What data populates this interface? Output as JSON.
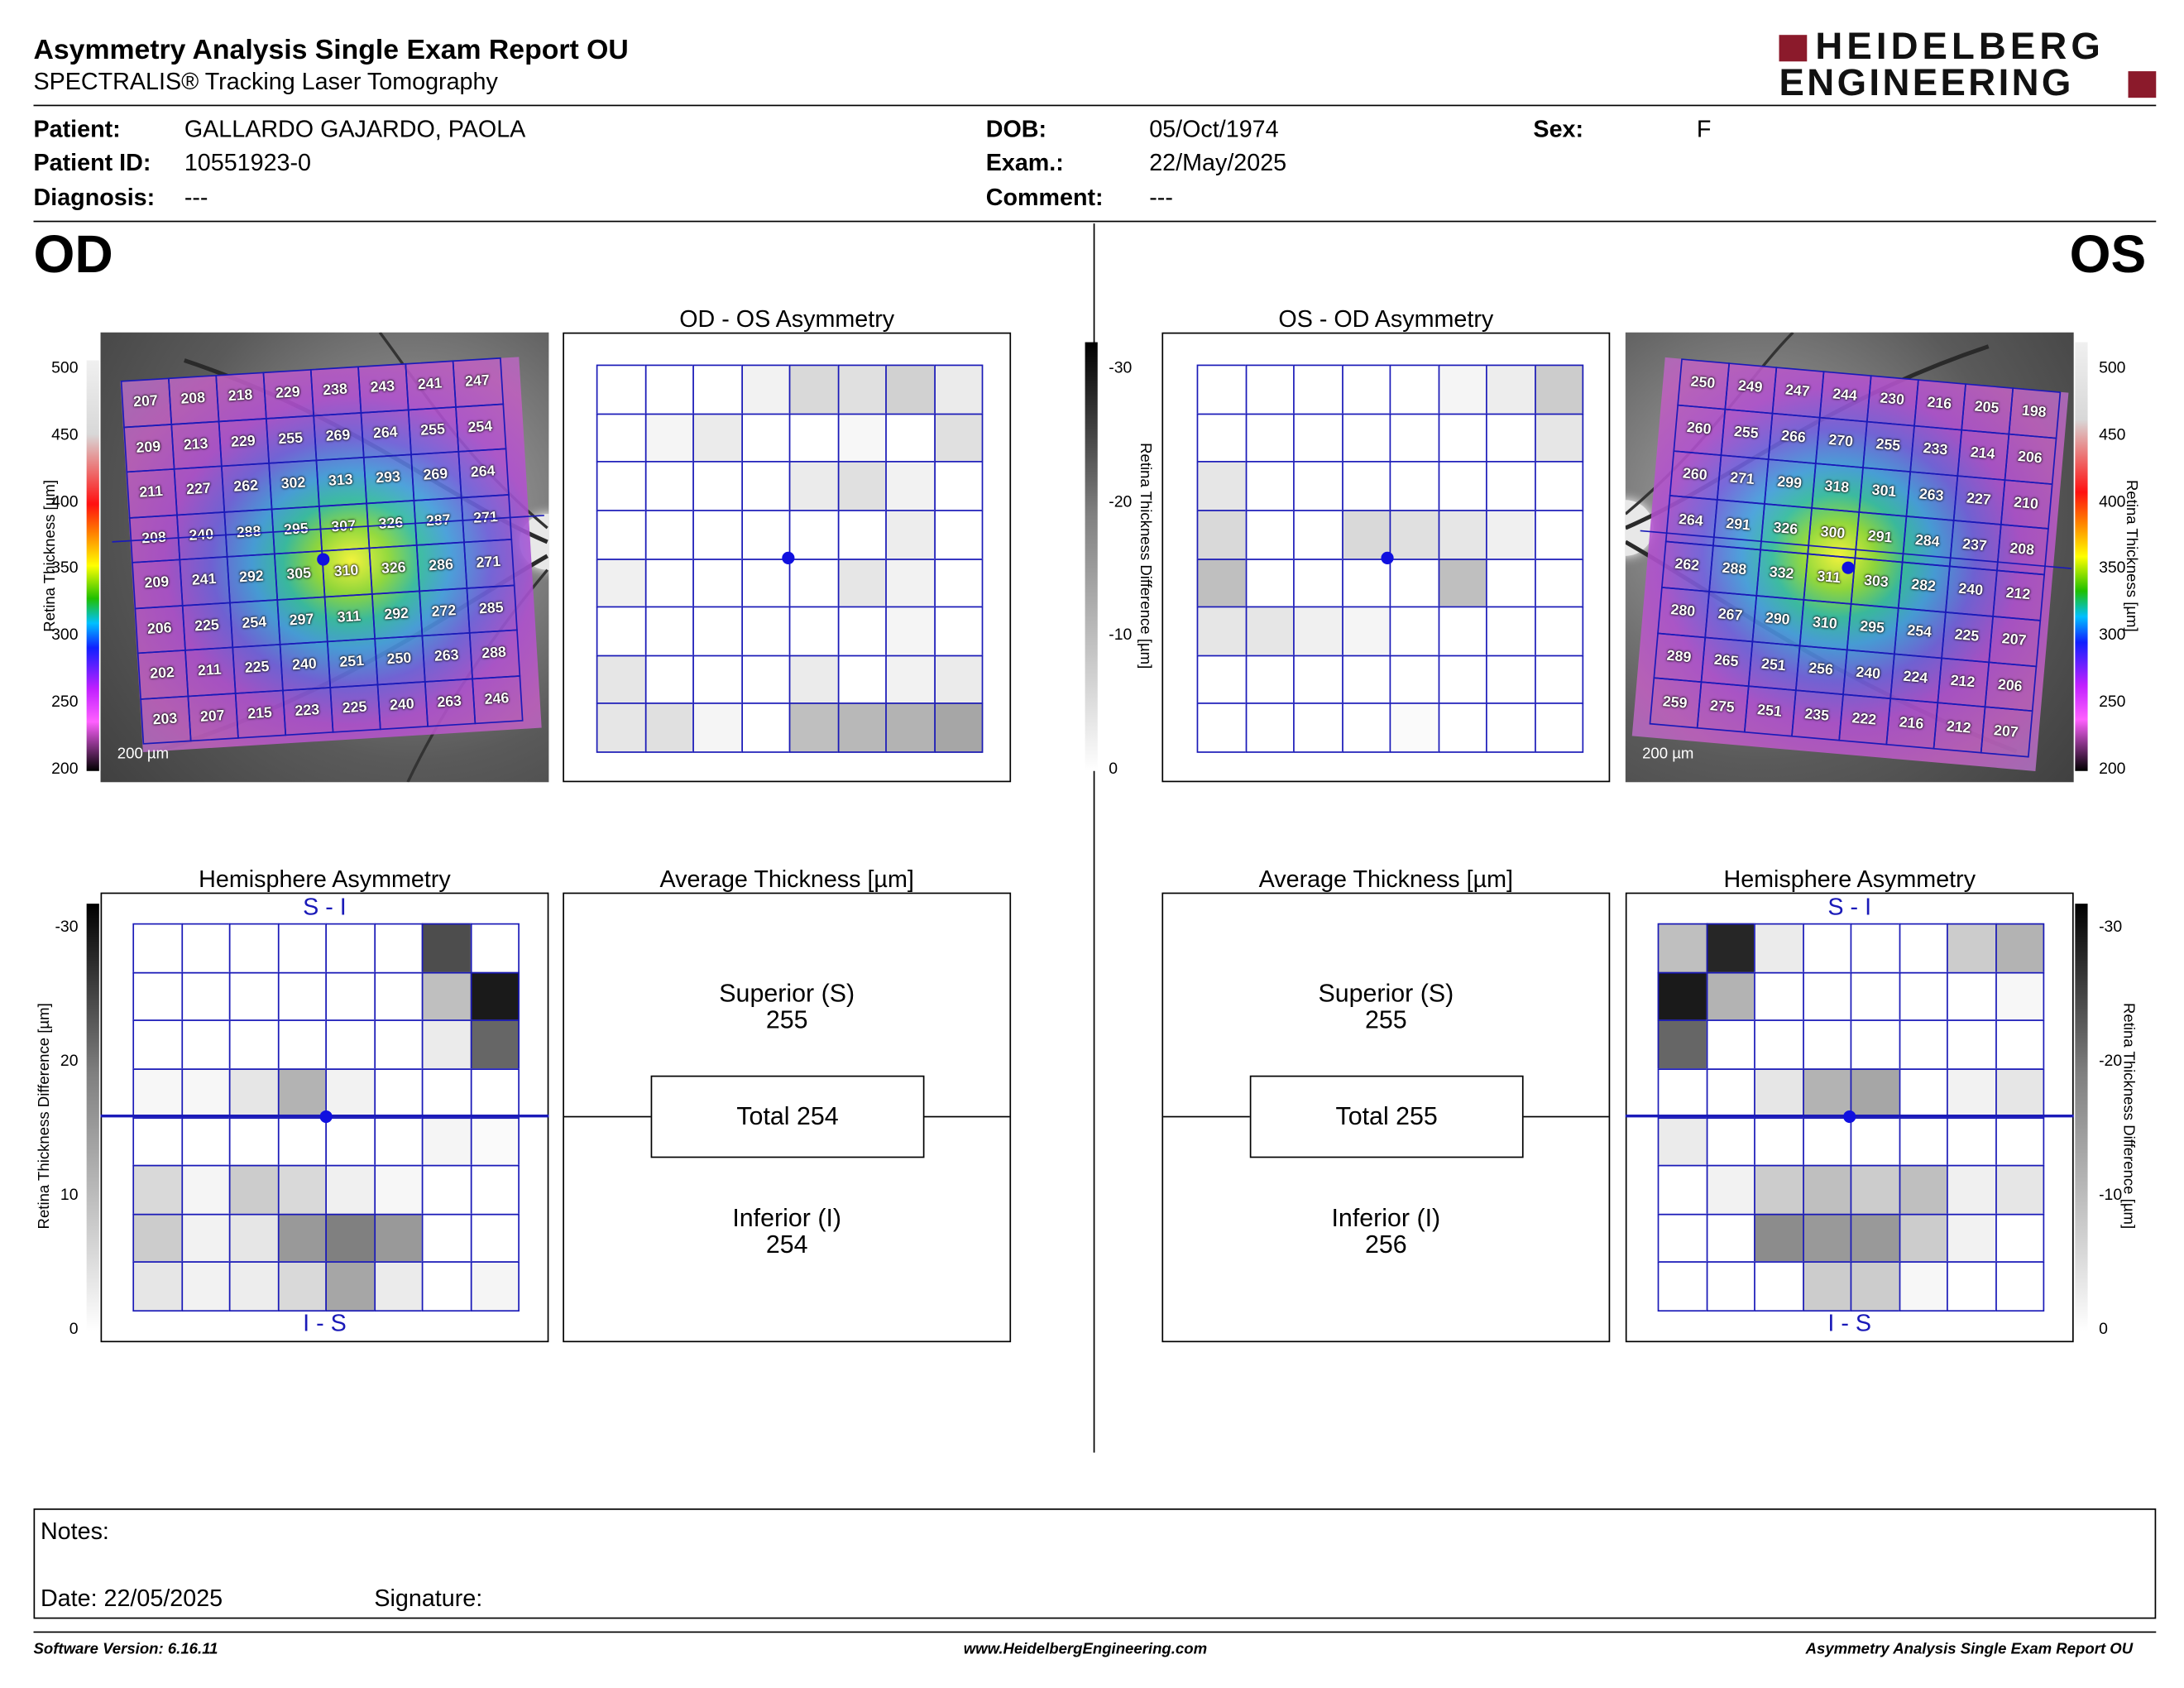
{
  "header": {
    "title": "Asymmetry Analysis Single Exam Report OU",
    "subtitle": "SPECTRALIS® Tracking Laser Tomography",
    "logo_line1": "HEIDELBERG",
    "logo_line2": "ENGINEERING",
    "logo_color": "#8b1a2b"
  },
  "patient": {
    "patient_label": "Patient:",
    "patient_value": "GALLARDO GAJARDO, PAOLA",
    "id_label": "Patient ID:",
    "id_value": "10551923-0",
    "diagnosis_label": "Diagnosis:",
    "diagnosis_value": "---",
    "dob_label": "DOB:",
    "dob_value": "05/Oct/1974",
    "exam_label": "Exam.:",
    "exam_value": "22/May/2025",
    "comment_label": "Comment:",
    "comment_value": "---",
    "sex_label": "Sex:",
    "sex_value": "F"
  },
  "od": {
    "eye": "OD",
    "asym_title": "OD - OS Asymmetry",
    "hemi_title": "Hemisphere Asymmetry",
    "avg_title": "Average Thickness [µm]",
    "superior_label": "Superior (S)",
    "superior_value": "255",
    "total_text": "Total 254",
    "inferior_label": "Inferior (I)",
    "inferior_value": "254",
    "scale_text": "200 µm",
    "hemi_top": "S - I",
    "hemi_bottom": "I - S",
    "thickness": [
      [
        "207",
        "208",
        "218",
        "229",
        "238",
        "243",
        "241",
        "247"
      ],
      [
        "209",
        "213",
        "229",
        "255",
        "269",
        "264",
        "255",
        "254"
      ],
      [
        "211",
        "227",
        "262",
        "302",
        "313",
        "293",
        "269",
        "264"
      ],
      [
        "208",
        "240",
        "288",
        "295",
        "307",
        "326",
        "287",
        "271"
      ],
      [
        "209",
        "241",
        "292",
        "305",
        "310",
        "326",
        "286",
        "271"
      ],
      [
        "206",
        "225",
        "254",
        "297",
        "311",
        "292",
        "272",
        "285"
      ],
      [
        "202",
        "211",
        "225",
        "240",
        "251",
        "250",
        "263",
        "288"
      ],
      [
        "203",
        "207",
        "215",
        "223",
        "225",
        "240",
        "263",
        "246"
      ]
    ],
    "asym_gray": [
      [
        0,
        0,
        0,
        0.05,
        0.15,
        0.12,
        0.18,
        0.08
      ],
      [
        0,
        0.04,
        0.08,
        0,
        0,
        0.03,
        0,
        0.12
      ],
      [
        0,
        0,
        0,
        0,
        0.08,
        0.12,
        0.05,
        0
      ],
      [
        0,
        0,
        0,
        0,
        0,
        0,
        0.07,
        0
      ],
      [
        0.06,
        0,
        0,
        0,
        0,
        0.1,
        0.05,
        0
      ],
      [
        0,
        0,
        0,
        0,
        0,
        0,
        0.04,
        0
      ],
      [
        0.1,
        0,
        0,
        0,
        0.08,
        0,
        0.05,
        0.08
      ],
      [
        0.1,
        0.12,
        0.04,
        0,
        0.25,
        0.28,
        0.3,
        0.35
      ]
    ],
    "hemi_gray": [
      [
        0,
        0,
        0,
        0,
        0,
        0,
        0.7,
        0
      ],
      [
        0,
        0,
        0,
        0,
        0,
        0,
        0.25,
        0.9
      ],
      [
        0,
        0,
        0,
        0,
        0,
        0,
        0.08,
        0.6
      ],
      [
        0.03,
        0.03,
        0.1,
        0.3,
        0.05,
        0,
        0,
        0
      ],
      [
        0,
        0,
        0,
        0,
        0,
        0,
        0.04,
        0.02
      ],
      [
        0.15,
        0.04,
        0.2,
        0.15,
        0.06,
        0.03,
        0,
        0
      ],
      [
        0.2,
        0.05,
        0.1,
        0.4,
        0.5,
        0.4,
        0,
        0
      ],
      [
        0.1,
        0.05,
        0.07,
        0.15,
        0.35,
        0.08,
        0,
        0.04
      ]
    ]
  },
  "os": {
    "eye": "OS",
    "asym_title": "OS - OD Asymmetry",
    "hemi_title": "Hemisphere Asymmetry",
    "avg_title": "Average Thickness [µm]",
    "superior_label": "Superior (S)",
    "superior_value": "255",
    "total_text": "Total 255",
    "inferior_label": "Inferior (I)",
    "inferior_value": "256",
    "scale_text": "200 µm",
    "hemi_top": "S - I",
    "hemi_bottom": "I - S",
    "thickness": [
      [
        "250",
        "249",
        "247",
        "244",
        "230",
        "216",
        "205",
        "198"
      ],
      [
        "260",
        "255",
        "266",
        "270",
        "255",
        "233",
        "214",
        "206"
      ],
      [
        "260",
        "271",
        "299",
        "318",
        "301",
        "263",
        "227",
        "210"
      ],
      [
        "264",
        "291",
        "326",
        "300",
        "291",
        "284",
        "237",
        "208"
      ],
      [
        "262",
        "288",
        "332",
        "311",
        "303",
        "282",
        "240",
        "212"
      ],
      [
        "280",
        "267",
        "290",
        "310",
        "295",
        "254",
        "225",
        "207"
      ],
      [
        "289",
        "265",
        "251",
        "256",
        "240",
        "224",
        "212",
        "206"
      ],
      [
        "259",
        "275",
        "251",
        "235",
        "222",
        "216",
        "212",
        "207"
      ]
    ],
    "asym_gray": [
      [
        0,
        0,
        0,
        0,
        0,
        0.04,
        0.07,
        0.2
      ],
      [
        0,
        0,
        0,
        0,
        0,
        0,
        0,
        0.1
      ],
      [
        0.1,
        0,
        0,
        0,
        0,
        0,
        0,
        0
      ],
      [
        0.15,
        0,
        0,
        0.15,
        0.12,
        0.1,
        0.06,
        0
      ],
      [
        0.25,
        0,
        0,
        0,
        0,
        0.25,
        0,
        0
      ],
      [
        0.1,
        0.1,
        0.06,
        0.04,
        0,
        0,
        0,
        0
      ],
      [
        0,
        0,
        0,
        0,
        0,
        0,
        0,
        0
      ],
      [
        0,
        0,
        0,
        0,
        0.02,
        0,
        0,
        0
      ]
    ],
    "hemi_gray": [
      [
        0.25,
        0.85,
        0.08,
        0,
        0,
        0,
        0.2,
        0.3
      ],
      [
        0.9,
        0.3,
        0,
        0,
        0,
        0,
        0,
        0.03
      ],
      [
        0.6,
        0,
        0,
        0,
        0,
        0,
        0,
        0
      ],
      [
        0,
        0,
        0.1,
        0.3,
        0.35,
        0,
        0.05,
        0.1
      ],
      [
        0.08,
        0,
        0,
        0,
        0,
        0,
        0,
        0
      ],
      [
        0,
        0.05,
        0.2,
        0.25,
        0.2,
        0.25,
        0.06,
        0.1
      ],
      [
        0,
        0,
        0.45,
        0.4,
        0.4,
        0.2,
        0.05,
        0
      ],
      [
        0,
        0,
        0,
        0.2,
        0.2,
        0.03,
        0,
        0
      ]
    ]
  },
  "scales": {
    "thickness_label": "Retina  Thickness [µm]",
    "thickness_ticks": [
      "500",
      "450",
      "400",
      "350",
      "300",
      "250",
      "200"
    ],
    "diff_label": "Retina Thickness Difference [µm]",
    "diff_ticks": [
      "-30",
      "-20",
      "-10",
      "0"
    ],
    "hemi_diff_ticks": [
      "-30",
      "20",
      "10",
      "0"
    ],
    "hemi_diff_ticks_os": [
      "-30",
      "-20",
      "-10",
      "0"
    ]
  },
  "notes": {
    "notes_label": "Notes:",
    "date_label": "Date: 22/05/2025",
    "signature_label": "Signature:"
  },
  "footer": {
    "software": "Software Version: 6.16.11",
    "website": "www.HeidelbergEngineering.com",
    "report": "Asymmetry Analysis Single Exam Report OU"
  },
  "colors": {
    "grid_line": "#1a1ab8",
    "fovea_dot": "#1010e0"
  }
}
